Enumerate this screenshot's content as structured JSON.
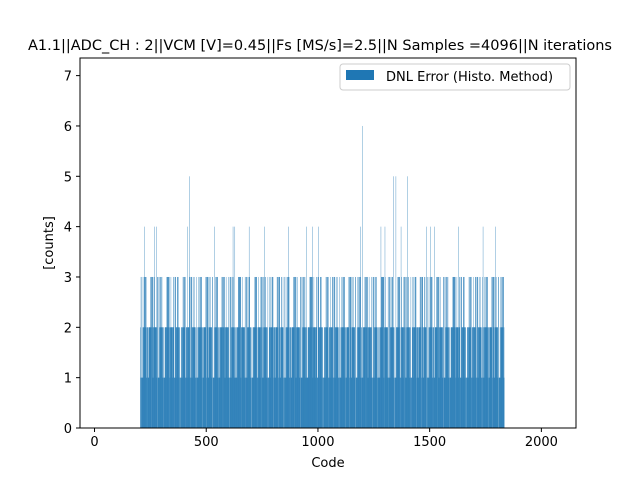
{
  "chart_data": {
    "type": "bar",
    "title": "A1.1||ADC_CH : 2||VCM [V]=0.45||Fs [MS/s]=2.5||N Samples =4096||N iterations",
    "xlabel": "Code",
    "ylabel": "[counts]",
    "xlim": [
      -65,
      2155
    ],
    "ylim": [
      0,
      7.35
    ],
    "xticks": [
      0,
      500,
      1000,
      1500,
      2000
    ],
    "yticks": [
      0,
      1,
      2,
      3,
      4,
      5,
      6,
      7
    ],
    "grid": false,
    "legend_position": "top-right",
    "bar_color": "#1f77b4",
    "code_range": [
      205,
      1835
    ],
    "series": [
      {
        "name": "DNL Error (Histo. Method)",
        "base_pattern": [
          1,
          2,
          3,
          2,
          1,
          3,
          2,
          2,
          1,
          3,
          2,
          2,
          3,
          1,
          2,
          2,
          0,
          3,
          2,
          1,
          2,
          3,
          2,
          1,
          2,
          2,
          3,
          1,
          2,
          2,
          1,
          3,
          2,
          2,
          0,
          2,
          3,
          1,
          2,
          2
        ],
        "peaks": [
          {
            "x": 225,
            "y": 4
          },
          {
            "x": 268,
            "y": 4
          },
          {
            "x": 277,
            "y": 4
          },
          {
            "x": 415,
            "y": 4
          },
          {
            "x": 425,
            "y": 5
          },
          {
            "x": 537,
            "y": 4
          },
          {
            "x": 620,
            "y": 4
          },
          {
            "x": 628,
            "y": 4
          },
          {
            "x": 692,
            "y": 4
          },
          {
            "x": 760,
            "y": 4
          },
          {
            "x": 868,
            "y": 4
          },
          {
            "x": 948,
            "y": 4
          },
          {
            "x": 976,
            "y": 4
          },
          {
            "x": 1002,
            "y": 4
          },
          {
            "x": 1190,
            "y": 4
          },
          {
            "x": 1198,
            "y": 6
          },
          {
            "x": 1282,
            "y": 4
          },
          {
            "x": 1300,
            "y": 4
          },
          {
            "x": 1338,
            "y": 5
          },
          {
            "x": 1349,
            "y": 5
          },
          {
            "x": 1372,
            "y": 4
          },
          {
            "x": 1400,
            "y": 5
          },
          {
            "x": 1486,
            "y": 4
          },
          {
            "x": 1503,
            "y": 4
          },
          {
            "x": 1523,
            "y": 4
          },
          {
            "x": 1628,
            "y": 4
          },
          {
            "x": 1739,
            "y": 4
          },
          {
            "x": 1795,
            "y": 4
          }
        ]
      }
    ]
  }
}
